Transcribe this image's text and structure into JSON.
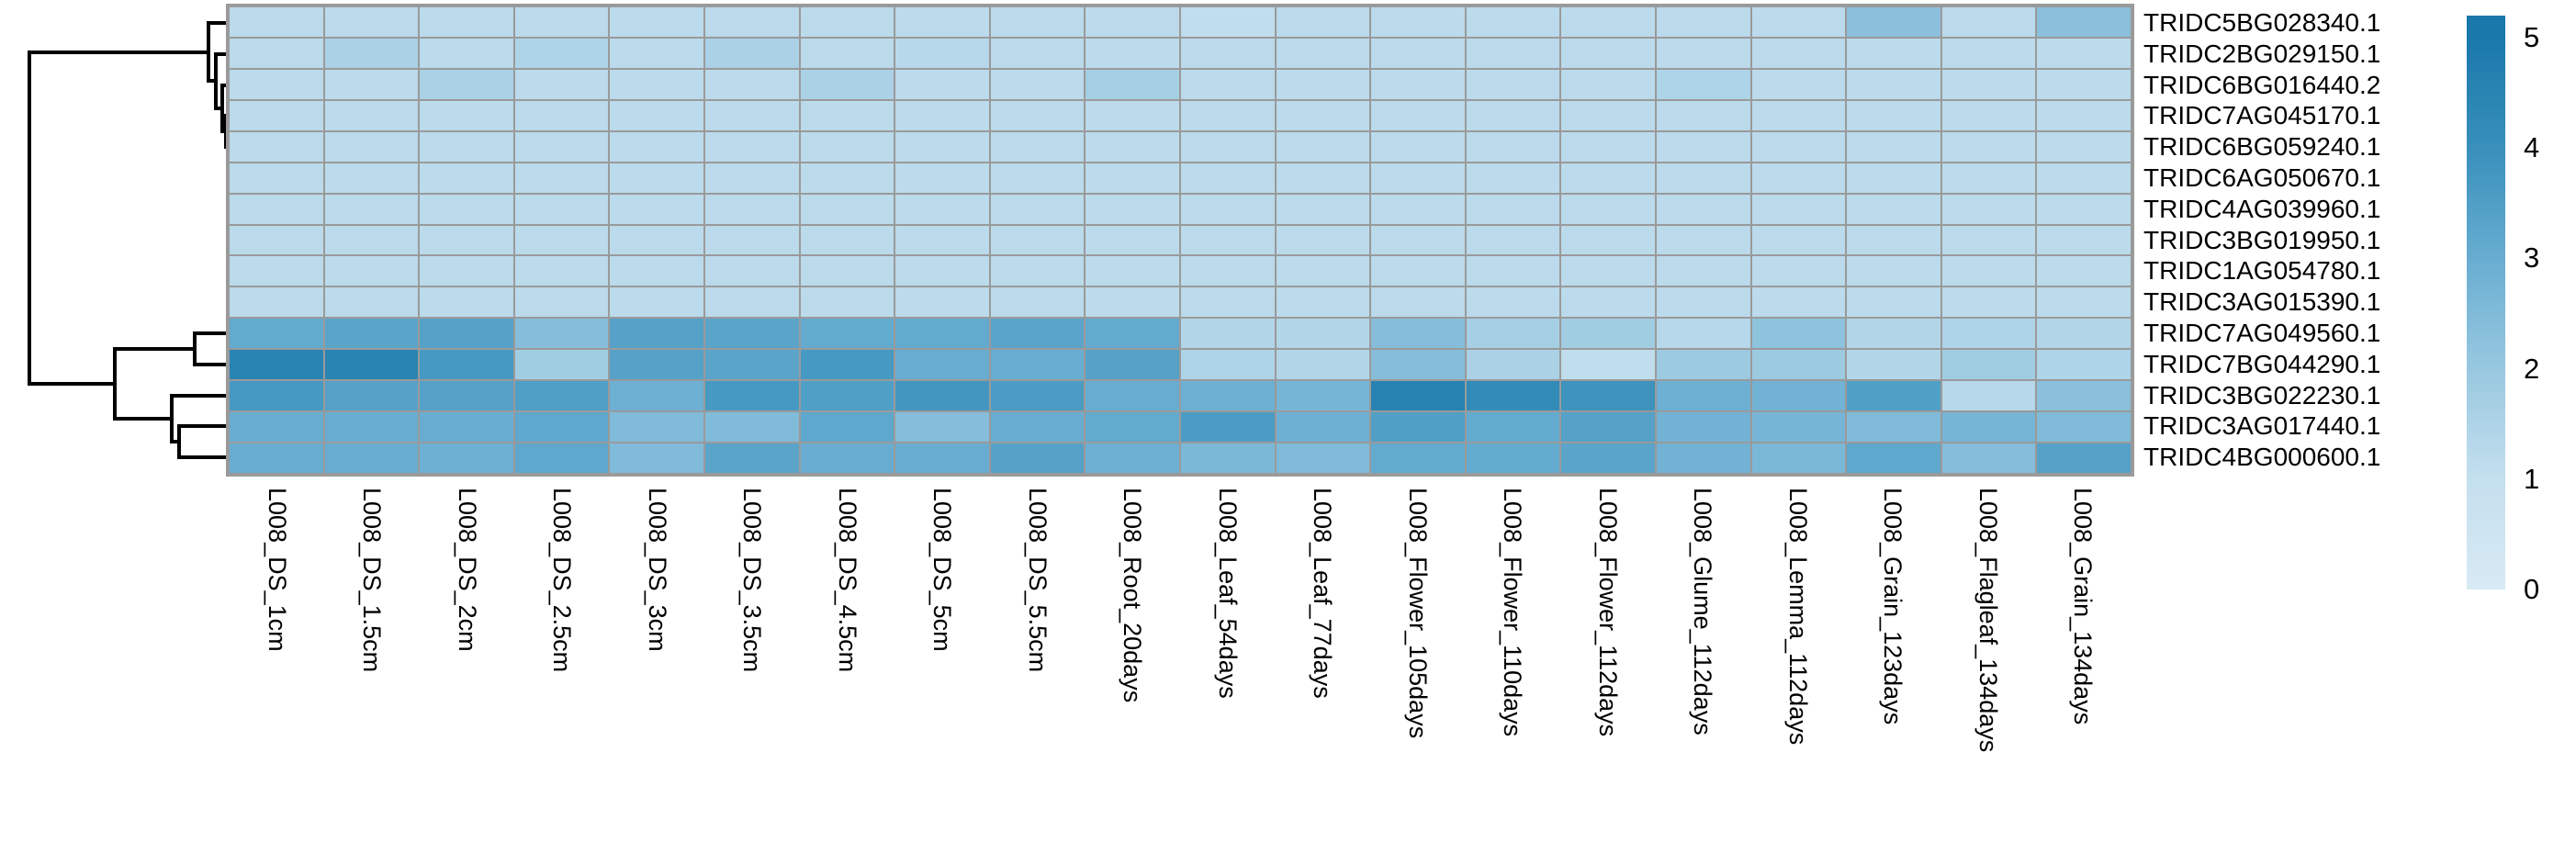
{
  "chart_data": {
    "type": "heatmap",
    "title": "",
    "legend_position": "right",
    "grid": true,
    "grid_color": "#9a9a9a",
    "background": "#ffffff",
    "rows": [
      "TRIDC5BG028340.1",
      "TRIDC2BG029150.1",
      "TRIDC6BG016440.2",
      "TRIDC7AG045170.1",
      "TRIDC6BG059240.1",
      "TRIDC6AG050670.1",
      "TRIDC4AG039960.1",
      "TRIDC3BG019950.1",
      "TRIDC1AG054780.1",
      "TRIDC3AG015390.1",
      "TRIDC7AG049560.1",
      "TRIDC7BG044290.1",
      "TRIDC3BG022230.1",
      "TRIDC3AG017440.1",
      "TRIDC4BG000600.1"
    ],
    "columns": [
      "L008_DS_1cm",
      "L008_DS_1.5cm",
      "L008_DS_2cm",
      "L008_DS_2.5cm",
      "L008_DS_3cm",
      "L008_DS_3.5cm",
      "L008_DS_4.5cm",
      "L008_DS_5cm",
      "L008_DS_5.5cm",
      "L008_Root_20days",
      "L008_Leaf_54days",
      "L008_Leaf_77days",
      "L008_Flower_105days",
      "L008_Flower_110days",
      "L008_Flower_112days",
      "L008_Glume_112days",
      "L008_Lemma_112days",
      "L008_Grain_123days",
      "L008_Flagleaf_134days",
      "L008_Grain_134days"
    ],
    "values": [
      [
        1.2,
        1.2,
        1.2,
        1.2,
        1.2,
        1.2,
        1.2,
        1.2,
        1.2,
        1.2,
        1.1,
        1.2,
        1.2,
        1.2,
        1.2,
        1.2,
        1.2,
        2.3,
        1.2,
        2.3
      ],
      [
        1.2,
        1.6,
        1.2,
        1.5,
        1.2,
        1.6,
        1.2,
        1.3,
        1.2,
        1.2,
        1.2,
        1.2,
        1.2,
        1.2,
        1.2,
        1.2,
        1.2,
        1.2,
        1.2,
        1.2
      ],
      [
        1.2,
        1.2,
        1.6,
        1.2,
        1.2,
        1.2,
        1.6,
        1.2,
        1.2,
        1.7,
        1.2,
        1.2,
        1.2,
        1.2,
        1.2,
        1.5,
        1.2,
        1.2,
        1.2,
        1.2
      ],
      [
        1.2,
        1.2,
        1.2,
        1.2,
        1.2,
        1.2,
        1.2,
        1.2,
        1.2,
        1.2,
        1.2,
        1.2,
        1.2,
        1.2,
        1.2,
        1.2,
        1.2,
        1.2,
        1.2,
        1.2
      ],
      [
        1.2,
        1.2,
        1.2,
        1.2,
        1.2,
        1.2,
        1.2,
        1.2,
        1.2,
        1.2,
        1.2,
        1.2,
        1.2,
        1.2,
        1.2,
        1.2,
        1.2,
        1.2,
        1.2,
        1.2
      ],
      [
        1.2,
        1.2,
        1.2,
        1.2,
        1.2,
        1.2,
        1.2,
        1.2,
        1.2,
        1.2,
        1.2,
        1.2,
        1.2,
        1.2,
        1.2,
        1.2,
        1.2,
        1.2,
        1.2,
        1.2
      ],
      [
        1.2,
        1.2,
        1.2,
        1.2,
        1.2,
        1.2,
        1.2,
        1.2,
        1.2,
        1.2,
        1.2,
        1.2,
        1.2,
        1.2,
        1.2,
        1.2,
        1.2,
        1.2,
        1.2,
        1.2
      ],
      [
        1.2,
        1.2,
        1.2,
        1.2,
        1.2,
        1.2,
        1.2,
        1.2,
        1.2,
        1.2,
        1.2,
        1.2,
        1.2,
        1.2,
        1.2,
        1.2,
        1.2,
        1.2,
        1.2,
        1.2
      ],
      [
        1.2,
        1.2,
        1.2,
        1.2,
        1.2,
        1.2,
        1.2,
        1.2,
        1.2,
        1.2,
        1.2,
        1.2,
        1.2,
        1.2,
        1.2,
        1.2,
        1.2,
        1.2,
        1.2,
        1.2
      ],
      [
        1.2,
        1.2,
        1.2,
        1.2,
        1.2,
        1.2,
        1.2,
        1.2,
        1.2,
        1.2,
        1.2,
        1.2,
        1.2,
        1.2,
        1.2,
        1.2,
        1.2,
        1.2,
        1.2,
        1.2
      ],
      [
        3.1,
        3.3,
        3.4,
        2.4,
        3.4,
        3.3,
        3.1,
        3.1,
        3.3,
        3.1,
        1.4,
        1.4,
        2.4,
        1.7,
        1.8,
        1.3,
        2.2,
        1.4,
        1.5,
        1.4
      ],
      [
        4.5,
        4.5,
        3.7,
        1.8,
        3.4,
        3.3,
        3.7,
        3.0,
        3.0,
        3.4,
        1.5,
        1.4,
        2.4,
        1.6,
        1.1,
        1.9,
        1.9,
        1.4,
        1.8,
        1.5
      ],
      [
        3.7,
        3.4,
        3.4,
        3.5,
        2.9,
        3.7,
        3.5,
        3.8,
        3.6,
        3.0,
        2.9,
        2.7,
        4.6,
        4.2,
        3.9,
        2.9,
        2.8,
        3.5,
        1.3,
        2.3
      ],
      [
        3.0,
        3.0,
        3.0,
        3.2,
        2.5,
        2.5,
        3.2,
        2.4,
        3.0,
        3.1,
        3.6,
        2.9,
        3.5,
        3.1,
        3.4,
        2.8,
        2.7,
        2.5,
        2.7,
        2.5
      ],
      [
        3.0,
        3.0,
        2.9,
        3.2,
        2.5,
        3.3,
        3.0,
        3.0,
        3.4,
        2.9,
        2.6,
        2.5,
        3.1,
        3.1,
        3.3,
        2.8,
        2.6,
        3.2,
        2.4,
        3.4
      ]
    ],
    "color_ramp": [
      {
        "v": 0,
        "c": "#d8eaf4"
      },
      {
        "v": 1,
        "c": "#c4dfee"
      },
      {
        "v": 2,
        "c": "#98c8e0"
      },
      {
        "v": 3,
        "c": "#68add1"
      },
      {
        "v": 4,
        "c": "#3890bb"
      },
      {
        "v": 5,
        "c": "#1a78aa"
      }
    ],
    "colorbar": {
      "min": 0,
      "max": 5.2,
      "tick_labels": [
        "5",
        "4",
        "3",
        "2",
        "1",
        "0"
      ],
      "tick_values": [
        5,
        4,
        3,
        2,
        1,
        0
      ]
    },
    "dendrogram": {
      "orientation": "left",
      "line_color": "#000000",
      "segments": [
        [
          227,
          25,
          250,
          25
        ],
        [
          235,
          59,
          250,
          59
        ],
        [
          242,
          93,
          250,
          93
        ],
        [
          246,
          126,
          250,
          126
        ],
        [
          246,
          160,
          250,
          160
        ],
        [
          212,
          363,
          250,
          363
        ],
        [
          212,
          397,
          250,
          397
        ],
        [
          187,
          431,
          250,
          431
        ],
        [
          195,
          464,
          250,
          464
        ],
        [
          195,
          498,
          250,
          498
        ],
        [
          227,
          25,
          227,
          88
        ],
        [
          235,
          59,
          235,
          118
        ],
        [
          242,
          93,
          242,
          143
        ],
        [
          246,
          126,
          246,
          160
        ],
        [
          212,
          363,
          212,
          397
        ],
        [
          187,
          431,
          187,
          481
        ],
        [
          195,
          464,
          195,
          498
        ],
        [
          125,
          380,
          125,
          456
        ],
        [
          32,
          57,
          32,
          418
        ],
        [
          227,
          88,
          235,
          88
        ],
        [
          235,
          118,
          242,
          118
        ],
        [
          242,
          143,
          246,
          143
        ],
        [
          32,
          57,
          227,
          57
        ],
        [
          125,
          380,
          212,
          380
        ],
        [
          125,
          456,
          187,
          456
        ],
        [
          187,
          481,
          195,
          481
        ],
        [
          32,
          418,
          125,
          418
        ]
      ]
    }
  }
}
